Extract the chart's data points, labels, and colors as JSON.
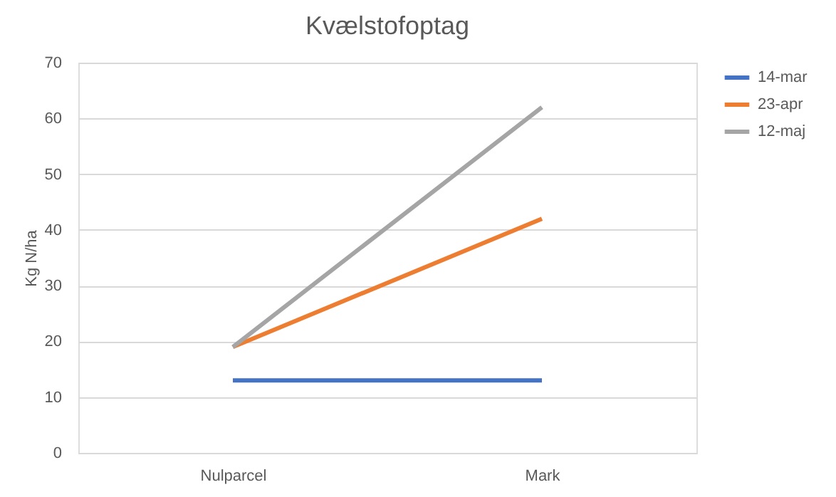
{
  "chart_data": {
    "type": "line",
    "title": "Kvælstofoptag",
    "ylabel": "Kg N/ha",
    "categories": [
      "Nulparcel",
      "Mark"
    ],
    "series": [
      {
        "name": "14-mar",
        "color": "#4472c4",
        "values": [
          13,
          13
        ]
      },
      {
        "name": "23-apr",
        "color": "#ed7d31",
        "values": [
          19,
          42
        ]
      },
      {
        "name": "12-maj",
        "color": "#a5a5a5",
        "values": [
          19,
          62
        ]
      }
    ],
    "ylim": [
      0,
      70
    ],
    "yticks": [
      0,
      10,
      20,
      30,
      40,
      50,
      60,
      70
    ],
    "grid": "y",
    "legend": "right",
    "marker": "none",
    "line_style": "solid"
  }
}
